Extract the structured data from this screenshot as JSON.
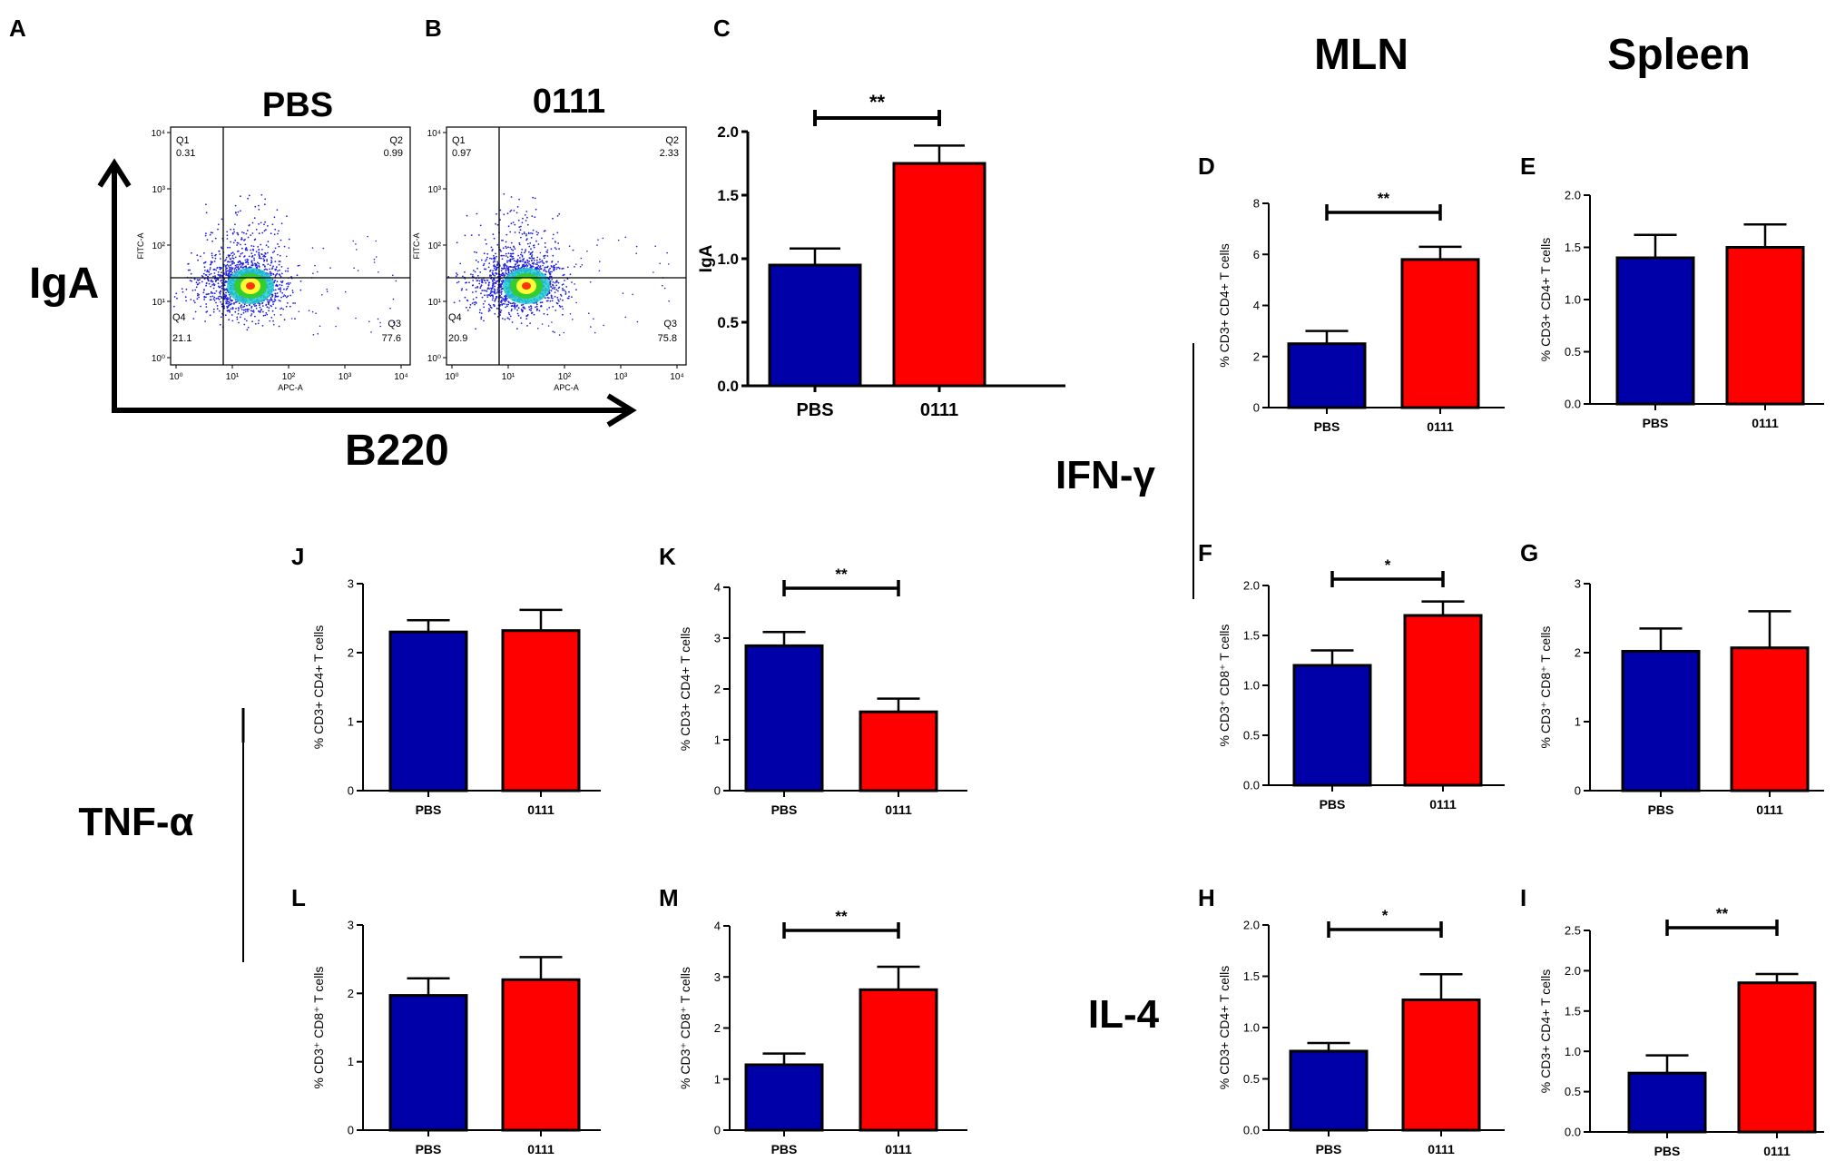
{
  "colors": {
    "pbs": "#0000a8",
    "treat": "#ff0000",
    "axis": "#000000",
    "flowDot": "#2020e0",
    "flowHot": "#33cc33"
  },
  "panel_letters": [
    "A",
    "B",
    "C",
    "D",
    "E",
    "F",
    "G",
    "H",
    "I",
    "J",
    "K",
    "L",
    "M"
  ],
  "headers": {
    "mln": "MLN",
    "spleen": "Spleen"
  },
  "cytokines": {
    "ifn": "IFN-γ",
    "tnf": "TNF-α",
    "il4": "IL-4"
  },
  "flow": {
    "y_axis_label": "IgA",
    "x_axis_label": "B220",
    "y_channel": "FITC-A",
    "x_channel": "APC-A",
    "tick_labels": [
      "10⁰",
      "10¹",
      "10²",
      "10³",
      "10⁴"
    ],
    "y_tick_labels": [
      "10⁰",
      "10¹",
      "10²",
      "10³",
      "10⁴"
    ],
    "plots": [
      {
        "title": "PBS",
        "q1_label": "Q1",
        "q1": "0.31",
        "q2_label": "Q2",
        "q2": "0.99",
        "q3_label": "Q3",
        "q3": "77.6",
        "q4_label": "Q4",
        "q4": "21.1"
      },
      {
        "title": "0111",
        "q1_label": "Q1",
        "q1": "0.97",
        "q2_label": "Q2",
        "q2": "2.33",
        "q3_label": "Q3",
        "q3": "75.8",
        "q4_label": "Q4",
        "q4": "20.9"
      }
    ]
  },
  "chart_data": [
    {
      "id": "C",
      "type": "bar",
      "title": "",
      "ylabel": "IgA",
      "xlabel": "",
      "categories": [
        "PBS",
        "0111"
      ],
      "values": [
        0.95,
        1.75
      ],
      "errors": [
        0.13,
        0.14
      ],
      "ylim": [
        0,
        2.0
      ],
      "yticks": [
        0.0,
        0.5,
        1.0,
        1.5,
        2.0
      ],
      "ytick_labels": [
        "0.0",
        "0.5",
        "1.0",
        "1.5",
        "2.0"
      ],
      "significance": "**"
    },
    {
      "id": "D",
      "type": "bar",
      "ylabel": "% CD3+ CD4+ T cells",
      "categories": [
        "PBS",
        "0111"
      ],
      "values": [
        2.5,
        5.8
      ],
      "errors": [
        0.5,
        0.5
      ],
      "ylim": [
        0,
        8
      ],
      "yticks": [
        0,
        2,
        4,
        6,
        8
      ],
      "ytick_labels": [
        "0",
        "2",
        "4",
        "6",
        "8"
      ],
      "significance": "**"
    },
    {
      "id": "E",
      "type": "bar",
      "ylabel": "% CD3+ CD4+ T cells",
      "categories": [
        "PBS",
        "0111"
      ],
      "values": [
        1.4,
        1.5
      ],
      "errors": [
        0.22,
        0.22
      ],
      "ylim": [
        0,
        2.0
      ],
      "yticks": [
        0.0,
        0.5,
        1.0,
        1.5,
        2.0
      ],
      "ytick_labels": [
        "0.0",
        "0.5",
        "1.0",
        "1.5",
        "2.0"
      ],
      "significance": ""
    },
    {
      "id": "F",
      "type": "bar",
      "ylabel": "% CD3⁺ CD8⁺ T cells",
      "categories": [
        "PBS",
        "0111"
      ],
      "values": [
        1.2,
        1.7
      ],
      "errors": [
        0.15,
        0.14
      ],
      "ylim": [
        0,
        2.0
      ],
      "yticks": [
        0.0,
        0.5,
        1.0,
        1.5,
        2.0
      ],
      "ytick_labels": [
        "0.0",
        "0.5",
        "1.0",
        "1.5",
        "2.0"
      ],
      "significance": "*"
    },
    {
      "id": "G",
      "type": "bar",
      "ylabel": "% CD3⁺ CD8⁺ T cells",
      "categories": [
        "PBS",
        "0111"
      ],
      "values": [
        2.02,
        2.07
      ],
      "errors": [
        0.33,
        0.53
      ],
      "ylim": [
        0,
        3
      ],
      "yticks": [
        0,
        1,
        2,
        3
      ],
      "ytick_labels": [
        "0",
        "1",
        "2",
        "3"
      ],
      "significance": ""
    },
    {
      "id": "H",
      "type": "bar",
      "ylabel": "% CD3+ CD4+ T cells",
      "categories": [
        "PBS",
        "0111"
      ],
      "values": [
        0.77,
        1.27
      ],
      "errors": [
        0.08,
        0.25
      ],
      "ylim": [
        0,
        2.0
      ],
      "yticks": [
        0.0,
        0.5,
        1.0,
        1.5,
        2.0
      ],
      "ytick_labels": [
        "0.0",
        "0.5",
        "1.0",
        "1.5",
        "2.0"
      ],
      "significance": "*"
    },
    {
      "id": "I",
      "type": "bar",
      "ylabel": "% CD3+ CD4+ T cells",
      "categories": [
        "PBS",
        "0111"
      ],
      "values": [
        0.73,
        1.85
      ],
      "errors": [
        0.22,
        0.11
      ],
      "ylim": [
        0,
        2.5
      ],
      "yticks": [
        0.0,
        0.5,
        1.0,
        1.5,
        2.0,
        2.5
      ],
      "ytick_labels": [
        "0.0",
        "0.5",
        "1.0",
        "1.5",
        "2.0",
        "2.5"
      ],
      "significance": "**"
    },
    {
      "id": "J",
      "type": "bar",
      "ylabel": "% CD3+ CD4+ T cells",
      "categories": [
        "PBS",
        "0111"
      ],
      "values": [
        2.3,
        2.32
      ],
      "errors": [
        0.17,
        0.3
      ],
      "ylim": [
        0,
        3
      ],
      "yticks": [
        0,
        1,
        2,
        3
      ],
      "ytick_labels": [
        "0",
        "1",
        "2",
        "3"
      ],
      "significance": ""
    },
    {
      "id": "K",
      "type": "bar",
      "ylabel": "% CD3+ CD4+ T cells",
      "categories": [
        "PBS",
        "0111"
      ],
      "values": [
        2.85,
        1.55
      ],
      "errors": [
        0.27,
        0.26
      ],
      "ylim": [
        0,
        4
      ],
      "yticks": [
        0,
        1,
        2,
        3,
        4
      ],
      "ytick_labels": [
        "0",
        "1",
        "2",
        "3",
        "4"
      ],
      "significance": "**"
    },
    {
      "id": "L",
      "type": "bar",
      "ylabel": "% CD3⁺ CD8⁺ T cells",
      "categories": [
        "PBS",
        "0111"
      ],
      "values": [
        1.97,
        2.2
      ],
      "errors": [
        0.25,
        0.33
      ],
      "ylim": [
        0,
        3
      ],
      "yticks": [
        0,
        1,
        2,
        3
      ],
      "ytick_labels": [
        "0",
        "1",
        "2",
        "3"
      ],
      "significance": ""
    },
    {
      "id": "M",
      "type": "bar",
      "ylabel": "% CD3⁺ CD8⁺ T cells",
      "categories": [
        "PBS",
        "0111"
      ],
      "values": [
        1.28,
        2.75
      ],
      "errors": [
        0.22,
        0.45
      ],
      "ylim": [
        0,
        4
      ],
      "yticks": [
        0,
        1,
        2,
        3,
        4
      ],
      "ytick_labels": [
        "0",
        "1",
        "2",
        "3",
        "4"
      ],
      "significance": "**"
    }
  ]
}
